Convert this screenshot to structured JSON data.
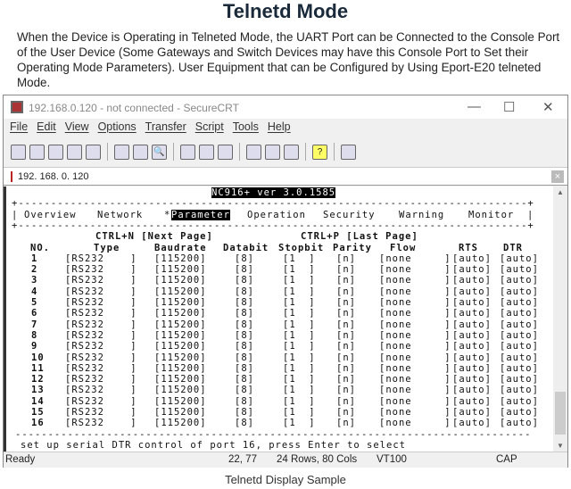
{
  "heading": "Telnetd Mode",
  "description": "When the Device is Operating in Telneted Mode, the UART Port can be Connected to the Console Port of the User Device (Some Gateways and Switch Devices may have this Console Port to Set their Operating Mode Parameters). User Equipment that can be Configured by Using Eport-E20 telneted Mode.",
  "window": {
    "title": "192.168.0.120 - not connected - SecureCRT",
    "minimize": "—",
    "maximize": "☐",
    "close": "✕"
  },
  "menu": [
    "File",
    "Edit",
    "View",
    "Options",
    "Transfer",
    "Script",
    "Tools",
    "Help"
  ],
  "toolbar_icons": [
    "connect-icon",
    "quick-connect-icon",
    "connect-tab-icon",
    "reconnect-icon",
    "disconnect-icon",
    "copy-icon",
    "paste-icon",
    "find-icon",
    "print-setup-icon",
    "print-selection-icon",
    "print-icon",
    "session-options-icon",
    "global-options-icon",
    "keymap-icon",
    "help-icon",
    "sftp-icon"
  ],
  "session_tab": {
    "label": "192. 168. 0. 120",
    "close": "×"
  },
  "terminal": {
    "header": "NC916+ ver 3.0.1585",
    "separator": "+------------------------------------------------------------------------------+",
    "tabs": [
      "Overview",
      "Network",
      "Parameter",
      "Operation",
      "Security",
      "Warning",
      "Monitor"
    ],
    "active_tab": "Parameter",
    "next_page": "CTRL+N [Next Page]",
    "last_page": "CTRL+P [Last Page]",
    "columns": [
      "NO.",
      "Type",
      "Baudrate",
      "Databit",
      "Stopbit",
      "Parity",
      "Flow",
      "RTS",
      "DTR"
    ],
    "rows": [
      [
        "1",
        "[RS232    ]",
        "[115200]",
        "[8]",
        "[1  ]",
        "[n]",
        "[none     ]",
        "[auto]",
        "[auto]"
      ],
      [
        "2",
        "[RS232    ]",
        "[115200]",
        "[8]",
        "[1  ]",
        "[n]",
        "[none     ]",
        "[auto]",
        "[auto]"
      ],
      [
        "3",
        "[RS232    ]",
        "[115200]",
        "[8]",
        "[1  ]",
        "[n]",
        "[none     ]",
        "[auto]",
        "[auto]"
      ],
      [
        "4",
        "[RS232    ]",
        "[115200]",
        "[8]",
        "[1  ]",
        "[n]",
        "[none     ]",
        "[auto]",
        "[auto]"
      ],
      [
        "5",
        "[RS232    ]",
        "[115200]",
        "[8]",
        "[1  ]",
        "[n]",
        "[none     ]",
        "[auto]",
        "[auto]"
      ],
      [
        "6",
        "[RS232    ]",
        "[115200]",
        "[8]",
        "[1  ]",
        "[n]",
        "[none     ]",
        "[auto]",
        "[auto]"
      ],
      [
        "7",
        "[RS232    ]",
        "[115200]",
        "[8]",
        "[1  ]",
        "[n]",
        "[none     ]",
        "[auto]",
        "[auto]"
      ],
      [
        "8",
        "[RS232    ]",
        "[115200]",
        "[8]",
        "[1  ]",
        "[n]",
        "[none     ]",
        "[auto]",
        "[auto]"
      ],
      [
        "9",
        "[RS232    ]",
        "[115200]",
        "[8]",
        "[1  ]",
        "[n]",
        "[none     ]",
        "[auto]",
        "[auto]"
      ],
      [
        "10",
        "[RS232    ]",
        "[115200]",
        "[8]",
        "[1  ]",
        "[n]",
        "[none     ]",
        "[auto]",
        "[auto]"
      ],
      [
        "11",
        "[RS232    ]",
        "[115200]",
        "[8]",
        "[1  ]",
        "[n]",
        "[none     ]",
        "[auto]",
        "[auto]"
      ],
      [
        "12",
        "[RS232    ]",
        "[115200]",
        "[8]",
        "[1  ]",
        "[n]",
        "[none     ]",
        "[auto]",
        "[auto]"
      ],
      [
        "13",
        "[RS232    ]",
        "[115200]",
        "[8]",
        "[1  ]",
        "[n]",
        "[none     ]",
        "[auto]",
        "[auto]"
      ],
      [
        "14",
        "[RS232    ]",
        "[115200]",
        "[8]",
        "[1  ]",
        "[n]",
        "[none     ]",
        "[auto]",
        "[auto]"
      ],
      [
        "15",
        "[RS232    ]",
        "[115200]",
        "[8]",
        "[1  ]",
        "[n]",
        "[none     ]",
        "[auto]",
        "[auto]"
      ],
      [
        "16",
        "[RS232    ]",
        "[115200]",
        "[8]",
        "[1  ]",
        "[n]",
        "[none     ]",
        "[auto]",
        "[auto]"
      ]
    ],
    "bottom_separator": "-------------------------------------------------------------------------------",
    "prompt": "set up serial DTR control of port 16, press Enter to select"
  },
  "status": {
    "ready": "Ready",
    "cursor": "22, 77",
    "size": "24 Rows, 80 Cols",
    "emulation": "VT100",
    "caps": "CAP"
  },
  "caption": "Telnetd Display Sample"
}
